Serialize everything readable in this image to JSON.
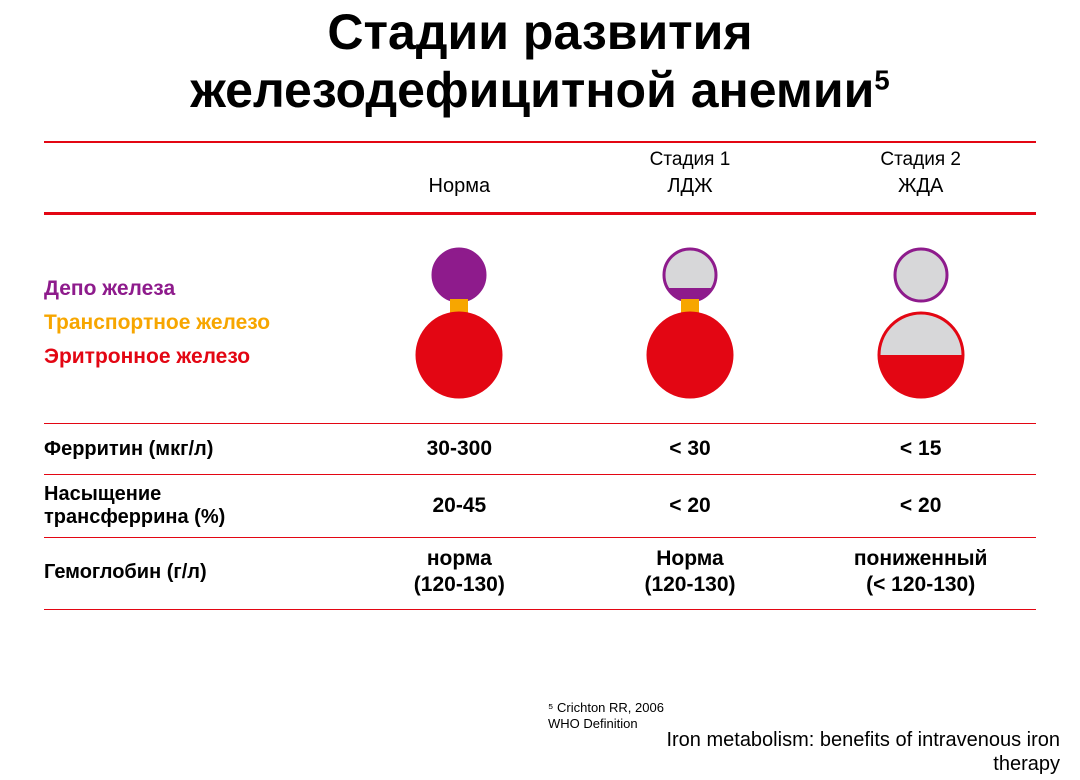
{
  "title_line1": "Стадии развития",
  "title_line2": "железодефицитной анемии",
  "title_sup": "5",
  "colors": {
    "rule": "#e30613",
    "depot": "#8e1b8c",
    "transport": "#f7a600",
    "erythron": "#e30613",
    "empty": "#d7d7d9",
    "outline_purple": "#8e1b8c",
    "outline_red": "#e30613"
  },
  "header": {
    "stage1": "Стадия 1",
    "stage2": "Стадия 2",
    "norm": "Норма",
    "ldj": "ЛДЖ",
    "jda": "ЖДА"
  },
  "legend": {
    "depot": {
      "text": "Депо железа",
      "color": "#8e1b8c"
    },
    "transport": {
      "text": "Транспортное железо",
      "color": "#f7a600"
    },
    "erythron": {
      "text": "Эритронное железо",
      "color": "#e30613"
    }
  },
  "diagrams": {
    "type": "compartment-bulbs",
    "geometry": {
      "top_circle_r": 26,
      "bottom_circle_r": 42,
      "neck_w": 18,
      "neck_h": 16
    },
    "states": [
      {
        "name": "norm",
        "top_fill_pct": 100,
        "neck_present": true,
        "bottom_fill_pct": 100
      },
      {
        "name": "stage1",
        "top_fill_pct": 25,
        "neck_present": true,
        "bottom_fill_pct": 100
      },
      {
        "name": "stage2",
        "top_fill_pct": 0,
        "neck_present": false,
        "bottom_fill_pct": 50
      }
    ]
  },
  "rows": [
    {
      "label": "Ферритин (мкг/л)",
      "v1": "30-300",
      "v2": "< 30",
      "v3": "< 15"
    },
    {
      "label": "Насыщение\nтрансферрина (%)",
      "v1": "20-45",
      "v2": "< 20",
      "v3": "< 20"
    },
    {
      "label": "Гемоглобин  (г/л)",
      "v1": "норма\n(120-130)",
      "v2": "Норма\n(120-130)",
      "v3": "пониженный\n(< 120-130)"
    }
  ],
  "footnote_lines": [
    "⁵ Crichton RR, 2006",
    "WHO Definition"
  ],
  "source_lines": [
    "Iron metabolism: benefits of intravenous iron",
    "therapy"
  ]
}
